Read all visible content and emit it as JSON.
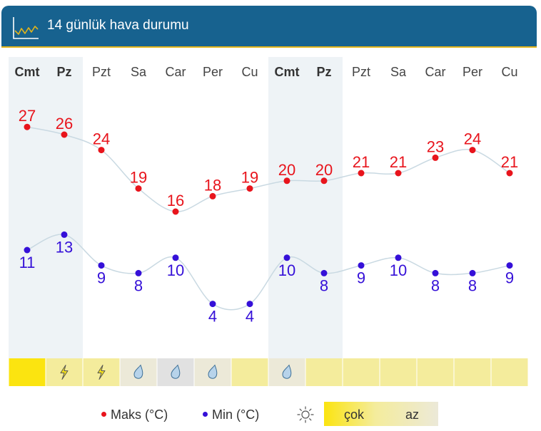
{
  "header": {
    "title": "14 günlük hava durumu",
    "icon": "line-chart-icon"
  },
  "colors": {
    "header_bg": "#17628f",
    "header_border": "#e2b41a",
    "max_color": "#e8141c",
    "min_color": "#3510d8",
    "weekend_bg": "#eef3f6",
    "line_color": "#c9d9e2"
  },
  "chart_data": {
    "type": "line",
    "categories": [
      "Cmt",
      "Pz",
      "Pzt",
      "Sa",
      "Car",
      "Per",
      "Cu",
      "Cmt",
      "Pz",
      "Pzt",
      "Sa",
      "Car",
      "Per",
      "Cu"
    ],
    "weekend": [
      true,
      true,
      false,
      false,
      false,
      false,
      false,
      true,
      true,
      false,
      false,
      false,
      false,
      false
    ],
    "series": [
      {
        "name": "Maks (°C)",
        "color": "#e8141c",
        "values": [
          27,
          26,
          24,
          19,
          16,
          18,
          19,
          20,
          20,
          21,
          21,
          23,
          24,
          21
        ]
      },
      {
        "name": "Min (°C)",
        "color": "#3510d8",
        "values": [
          11,
          13,
          9,
          8,
          10,
          4,
          4,
          10,
          8,
          9,
          10,
          8,
          8,
          9
        ]
      }
    ],
    "sunshine": {
      "icons": [
        "",
        "lightning-icon",
        "lightning-icon",
        "raindrop-icon",
        "raindrop-icon",
        "raindrop-icon",
        "",
        "raindrop-icon",
        "",
        "",
        "",
        "",
        "",
        ""
      ],
      "colors": [
        "#fbe410",
        "#f4ec9c",
        "#f4ec9c",
        "#ece9d8",
        "#e1e1e1",
        "#ece9d8",
        "#f4ec9c",
        "#ece9d8",
        "#f4ec9c",
        "#f4ec9c",
        "#f4ec9c",
        "#f4ec9c",
        "#f4ec9c",
        "#f4ec9c"
      ]
    }
  },
  "legend": {
    "max_label": "Maks (°C)",
    "min_label": "Min (°C)",
    "sun_icon": "sun-icon",
    "scale_high": "çok",
    "scale_low": "az"
  }
}
